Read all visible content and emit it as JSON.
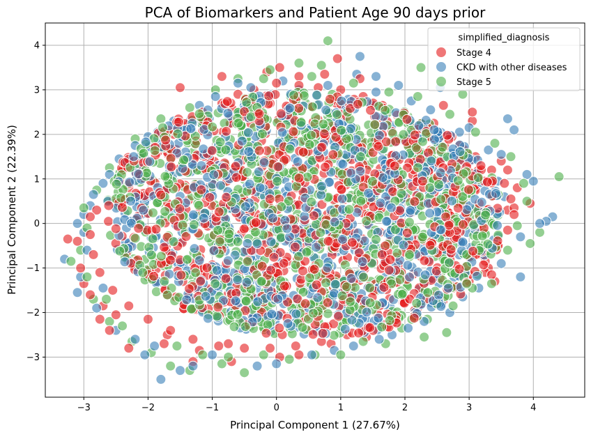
{
  "chart_data": {
    "type": "scatter",
    "title": "PCA of Biomarkers and Patient Age 90 days prior",
    "xlabel": "Principal Component 1 (27.67%)",
    "ylabel": "Principal Component 2 (22.39%)",
    "xlim": [
      -3.6,
      4.8
    ],
    "ylim": [
      -3.9,
      4.5
    ],
    "xticks": [
      -3,
      -2,
      -1,
      0,
      1,
      2,
      3,
      4
    ],
    "yticks": [
      -3,
      -2,
      -1,
      0,
      1,
      2,
      3,
      4
    ],
    "grid": true,
    "legend": {
      "title": "simplified_diagnosis",
      "placement": "top-right",
      "entries": [
        {
          "label": "Stage 4",
          "color": "#e41a1c"
        },
        {
          "label": "CKD with other diseases",
          "color": "#377eb8"
        },
        {
          "label": "Stage 5",
          "color": "#4daf4a"
        }
      ]
    },
    "series": [
      {
        "name": "Stage 4",
        "color": "#e41a1c",
        "alpha": 0.6,
        "points": [
          [
            -0.85,
            3.3
          ],
          [
            0.05,
            3.5
          ],
          [
            0.75,
            3.35
          ],
          [
            0.95,
            3.7
          ],
          [
            -1.5,
            3.05
          ],
          [
            -0.15,
            3.4
          ],
          [
            0.35,
            3.3
          ],
          [
            1.3,
            3.25
          ],
          [
            2.45,
            2.25
          ],
          [
            2.6,
            2.65
          ],
          [
            3.05,
            2.3
          ],
          [
            3.05,
            2.5
          ],
          [
            3.5,
            1.4
          ],
          [
            3.6,
            1.2
          ],
          [
            3.95,
            0.45
          ],
          [
            3.75,
            0.8
          ],
          [
            3.6,
            0.3
          ],
          [
            3.4,
            -1.3
          ],
          [
            3.2,
            -0.7
          ],
          [
            3.3,
            -1.0
          ],
          [
            2.5,
            -1.6
          ],
          [
            2.2,
            -1.9
          ],
          [
            2.25,
            -1.8
          ],
          [
            3.25,
            -1.1
          ],
          [
            3.0,
            -1.3
          ],
          [
            3.35,
            -1.15
          ],
          [
            3.45,
            -0.5
          ],
          [
            3.7,
            0.35
          ],
          [
            3.1,
            0.0
          ],
          [
            3.25,
            0.3
          ],
          [
            -3.0,
            -1.35
          ],
          [
            -2.7,
            -1.85
          ],
          [
            -2.75,
            -2.15
          ],
          [
            -2.3,
            -2.8
          ],
          [
            -1.7,
            -2.5
          ],
          [
            -1.75,
            -2.7
          ],
          [
            -1.3,
            -3.1
          ],
          [
            -1.2,
            -2.85
          ],
          [
            -0.75,
            -2.7
          ],
          [
            -0.7,
            -3.1
          ],
          [
            0.05,
            -3.0
          ],
          [
            0.35,
            -2.95
          ],
          [
            0.85,
            -2.7
          ],
          [
            1.4,
            -2.55
          ],
          [
            -3.1,
            -0.4
          ],
          [
            -3.05,
            -1.0
          ],
          [
            -2.9,
            -1.6
          ],
          [
            -2.6,
            -2.4
          ],
          [
            -2.5,
            -2.05
          ],
          [
            -3.25,
            -0.35
          ],
          [
            -2.8,
            0.3
          ],
          [
            -2.55,
            0.5
          ],
          [
            -2.3,
            0.8
          ],
          [
            -2.1,
            1.2
          ],
          [
            -1.85,
            1.6
          ],
          [
            -1.6,
            2.0
          ],
          [
            -1.4,
            2.2
          ],
          [
            -1.15,
            2.5
          ],
          [
            -0.85,
            2.7
          ],
          [
            -0.6,
            2.9
          ],
          [
            -0.35,
            3.0
          ],
          [
            0.0,
            3.15
          ],
          [
            0.35,
            3.1
          ],
          [
            0.65,
            3.05
          ],
          [
            1.0,
            3.0
          ],
          [
            1.35,
            2.85
          ],
          [
            1.65,
            2.65
          ],
          [
            1.95,
            2.45
          ],
          [
            2.25,
            2.25
          ],
          [
            2.55,
            2.0
          ],
          [
            2.85,
            1.75
          ],
          [
            3.1,
            1.5
          ],
          [
            3.35,
            1.2
          ],
          [
            3.55,
            0.9
          ],
          [
            3.65,
            0.55
          ],
          [
            3.7,
            0.2
          ],
          [
            3.6,
            -0.15
          ],
          [
            3.45,
            -0.5
          ],
          [
            3.25,
            -0.85
          ],
          [
            3.0,
            -1.15
          ],
          [
            2.75,
            -1.45
          ],
          [
            2.45,
            -1.7
          ],
          [
            2.15,
            -1.95
          ],
          [
            1.8,
            -2.15
          ],
          [
            1.45,
            -2.35
          ],
          [
            1.1,
            -2.5
          ],
          [
            0.7,
            -2.65
          ],
          [
            0.3,
            -2.75
          ],
          [
            -0.1,
            -2.8
          ],
          [
            -0.5,
            -2.8
          ],
          [
            -0.9,
            -2.75
          ],
          [
            -1.3,
            -2.6
          ],
          [
            -1.65,
            -2.4
          ],
          [
            -2.0,
            -2.15
          ],
          [
            -2.3,
            -1.85
          ],
          [
            -2.55,
            -1.5
          ],
          [
            -2.75,
            -1.1
          ],
          [
            -2.85,
            -0.7
          ],
          [
            -2.9,
            -0.25
          ],
          [
            -2.9,
            0.15
          ]
        ]
      },
      {
        "name": "CKD with other diseases",
        "color": "#377eb8",
        "alpha": 0.6,
        "points": [
          [
            -3.3,
            -0.8
          ],
          [
            -3.1,
            -1.55
          ],
          [
            -1.8,
            -3.5
          ],
          [
            1.3,
            3.75
          ],
          [
            1.25,
            3.35
          ],
          [
            1.55,
            3.3
          ],
          [
            2.55,
            3.05
          ],
          [
            4.3,
            0.15
          ],
          [
            4.2,
            0.05
          ],
          [
            4.1,
            0.0
          ],
          [
            3.8,
            -1.2
          ],
          [
            3.7,
            2.1
          ],
          [
            3.6,
            2.35
          ],
          [
            4.0,
            0.95
          ],
          [
            3.9,
            1.1
          ],
          [
            3.5,
            1.55
          ],
          [
            3.3,
            1.65
          ],
          [
            -2.9,
            0.4
          ],
          [
            -3.0,
            0.2
          ],
          [
            -3.1,
            0.0
          ],
          [
            -3.0,
            -0.2
          ],
          [
            -2.7,
            0.9
          ],
          [
            -2.45,
            1.45
          ],
          [
            -2.0,
            1.95
          ],
          [
            -1.6,
            2.3
          ],
          [
            -1.2,
            2.65
          ],
          [
            -0.6,
            3.15
          ],
          [
            0.35,
            3.0
          ],
          [
            0.8,
            3.1
          ],
          [
            1.9,
            3.1
          ],
          [
            2.1,
            2.75
          ],
          [
            2.85,
            2.05
          ],
          [
            3.0,
            2.15
          ],
          [
            2.9,
            -1.65
          ],
          [
            3.15,
            -1.45
          ],
          [
            2.7,
            -2.0
          ],
          [
            1.8,
            -2.5
          ],
          [
            1.2,
            -2.75
          ],
          [
            0.55,
            -2.95
          ],
          [
            -0.3,
            -3.2
          ],
          [
            -1.5,
            -3.3
          ],
          [
            -2.05,
            -2.95
          ],
          [
            -2.5,
            -2.4
          ],
          [
            -2.8,
            -1.9
          ],
          [
            -3.05,
            -1.2
          ],
          [
            -1.0,
            -2.95
          ],
          [
            0.0,
            -3.15
          ],
          [
            -2.2,
            -2.6
          ],
          [
            -1.3,
            -3.2
          ],
          [
            0.9,
            -2.85
          ],
          [
            1.6,
            -2.6
          ],
          [
            2.3,
            -2.2
          ],
          [
            3.3,
            -0.5
          ],
          [
            3.5,
            -0.9
          ],
          [
            3.8,
            -0.3
          ],
          [
            3.55,
            0.6
          ],
          [
            3.45,
            0.95
          ],
          [
            2.4,
            2.55
          ],
          [
            1.55,
            2.95
          ],
          [
            0.1,
            3.2
          ],
          [
            -0.4,
            3.05
          ],
          [
            -0.95,
            2.85
          ],
          [
            -1.85,
            2.05
          ],
          [
            -2.2,
            1.75
          ],
          [
            -2.6,
            1.1
          ],
          [
            -2.85,
            0.65
          ],
          [
            -2.95,
            -0.6
          ],
          [
            -2.7,
            -1.45
          ],
          [
            -1.9,
            -2.75
          ],
          [
            2.05,
            -2.35
          ],
          [
            1.0,
            2.6
          ],
          [
            -1.0,
            1.2
          ],
          [
            0.6,
            0.4
          ],
          [
            1.7,
            -1.2
          ],
          [
            -0.3,
            -1.5
          ],
          [
            2.6,
            0.6
          ],
          [
            -1.6,
            -0.4
          ],
          [
            0.2,
            1.8
          ],
          [
            1.2,
            -0.3
          ],
          [
            -2.2,
            0.0
          ]
        ]
      },
      {
        "name": "Stage 5",
        "color": "#4daf4a",
        "alpha": 0.6,
        "points": [
          [
            0.8,
            4.1
          ],
          [
            0.7,
            3.55
          ],
          [
            0.35,
            3.6
          ],
          [
            2.25,
            3.5
          ],
          [
            2.9,
            2.9
          ],
          [
            -0.1,
            3.45
          ],
          [
            -0.6,
            3.25
          ],
          [
            4.1,
            -0.2
          ],
          [
            4.4,
            1.05
          ],
          [
            3.95,
            -0.45
          ],
          [
            -1.65,
            -3.2
          ],
          [
            -1.35,
            -3.3
          ],
          [
            -0.85,
            -3.15
          ],
          [
            -0.5,
            -3.35
          ],
          [
            0.6,
            -2.95
          ],
          [
            1.7,
            -2.7
          ],
          [
            2.3,
            -2.55
          ],
          [
            2.65,
            -2.45
          ],
          [
            -3.2,
            -0.85
          ],
          [
            -2.85,
            -1.7
          ],
          [
            -2.6,
            -2.2
          ],
          [
            -2.25,
            -2.65
          ],
          [
            -1.95,
            -2.9
          ],
          [
            -3.05,
            -0.6
          ],
          [
            -3.0,
            0.35
          ],
          [
            -2.8,
            0.75
          ],
          [
            -2.6,
            1.25
          ],
          [
            -2.2,
            1.9
          ],
          [
            -1.8,
            2.35
          ],
          [
            -1.35,
            2.6
          ],
          [
            -0.95,
            3.0
          ],
          [
            -0.2,
            3.25
          ],
          [
            0.55,
            3.3
          ],
          [
            1.2,
            3.15
          ],
          [
            1.75,
            2.95
          ],
          [
            2.2,
            2.85
          ],
          [
            2.7,
            2.45
          ],
          [
            3.1,
            2.05
          ],
          [
            3.4,
            1.8
          ],
          [
            3.65,
            1.5
          ],
          [
            3.85,
            0.9
          ],
          [
            3.9,
            0.5
          ],
          [
            3.75,
            -0.05
          ],
          [
            3.6,
            -0.6
          ],
          [
            3.35,
            -1.35
          ],
          [
            3.05,
            -1.45
          ],
          [
            2.75,
            -1.85
          ],
          [
            2.35,
            -2.15
          ],
          [
            1.95,
            -2.35
          ],
          [
            1.35,
            -2.65
          ],
          [
            1.0,
            -2.95
          ],
          [
            0.2,
            -3.05
          ],
          [
            -0.2,
            -2.95
          ],
          [
            -0.75,
            -3.0
          ],
          [
            -1.15,
            -2.95
          ],
          [
            -1.55,
            -2.75
          ],
          [
            -2.4,
            -2.3
          ],
          [
            -2.65,
            -1.7
          ],
          [
            -2.95,
            -1.2
          ],
          [
            -2.95,
            -0.1
          ],
          [
            -0.5,
            0.5
          ],
          [
            1.5,
            1.0
          ],
          [
            0.3,
            -1.0
          ],
          [
            -1.3,
            1.6
          ],
          [
            2.0,
            -0.4
          ],
          [
            -2.0,
            -1.2
          ],
          [
            0.9,
            1.7
          ],
          [
            -0.8,
            -2.0
          ],
          [
            2.5,
            1.4
          ],
          [
            1.1,
            -1.8
          ]
        ]
      }
    ]
  }
}
